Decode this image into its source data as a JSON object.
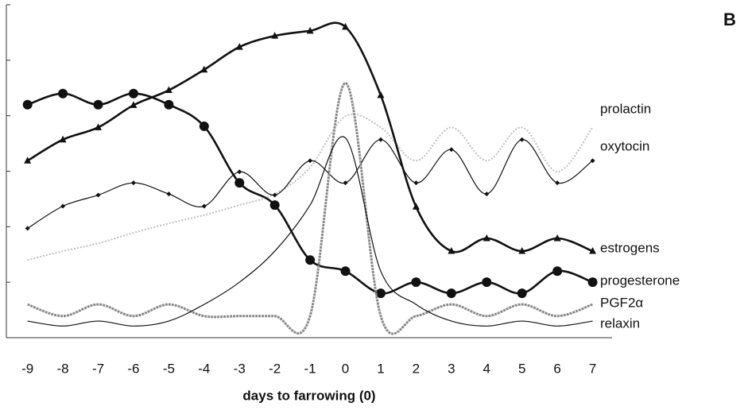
{
  "chart_data": {
    "type": "line",
    "panel_label": "B",
    "x_label": "days to farrowing (0)",
    "x": [
      -9,
      -8,
      -7,
      -6,
      -5,
      -4,
      -3,
      -2,
      -1,
      0,
      1,
      2,
      3,
      4,
      5,
      6,
      7
    ],
    "xlim": [
      -9.6,
      7.55
    ],
    "xticks": [
      -9,
      -8,
      -7,
      -6,
      -5,
      -4,
      -3,
      -2,
      -1,
      0,
      1,
      2,
      3,
      4,
      5,
      6,
      7
    ],
    "ylim": [
      0,
      6
    ],
    "yticks": [
      1,
      2,
      3,
      4,
      5,
      6
    ],
    "series": [
      {
        "name": "prolactin",
        "color": "#c0c0c0",
        "width": 2,
        "dash": "2 2",
        "marker": null,
        "values": [
          1.4,
          1.56,
          1.7,
          1.89,
          2.06,
          2.21,
          2.39,
          2.59,
          3.07,
          3.99,
          3.79,
          3.19,
          3.79,
          3.19,
          3.79,
          2.99,
          3.79
        ]
      },
      {
        "name": "oxytocin",
        "color": "#111111",
        "width": 1.2,
        "dash": null,
        "marker": "diamond",
        "values": [
          1.97,
          2.37,
          2.57,
          2.79,
          2.59,
          2.37,
          2.99,
          2.57,
          3.19,
          2.79,
          3.57,
          2.79,
          3.39,
          2.59,
          3.57,
          2.79,
          3.19
        ]
      },
      {
        "name": "estrogens",
        "color": "#111111",
        "width": 2.6,
        "dash": null,
        "marker": "triangle",
        "values": [
          3.19,
          3.57,
          3.79,
          4.19,
          4.46,
          4.83,
          5.24,
          5.44,
          5.53,
          5.6,
          4.37,
          2.36,
          1.56,
          1.79,
          1.56,
          1.79,
          1.56
        ]
      },
      {
        "name": "progesterone",
        "color": "#111111",
        "width": 2.6,
        "dash": null,
        "marker": "circle",
        "values": [
          4.2,
          4.4,
          4.2,
          4.4,
          4.2,
          3.81,
          2.79,
          2.39,
          1.4,
          1.2,
          0.8,
          1.0,
          0.8,
          1.0,
          0.8,
          1.2,
          1.0
        ]
      },
      {
        "name": "PGF2α",
        "color": "#8a8a8a",
        "width": 3,
        "dash": "3 1",
        "marker": null,
        "values": [
          0.6,
          0.39,
          0.6,
          0.39,
          0.6,
          0.39,
          0.39,
          0.39,
          0.39,
          4.59,
          0.39,
          0.39,
          0.6,
          0.39,
          0.6,
          0.39,
          0.6
        ]
      },
      {
        "name": "relaxin",
        "color": "#111111",
        "width": 1.2,
        "dash": null,
        "marker": null,
        "values": [
          0.3,
          0.21,
          0.3,
          0.21,
          0.3,
          0.6,
          1.0,
          1.56,
          2.39,
          3.6,
          1.2,
          0.6,
          0.3,
          0.21,
          0.3,
          0.21,
          0.3
        ]
      }
    ]
  }
}
